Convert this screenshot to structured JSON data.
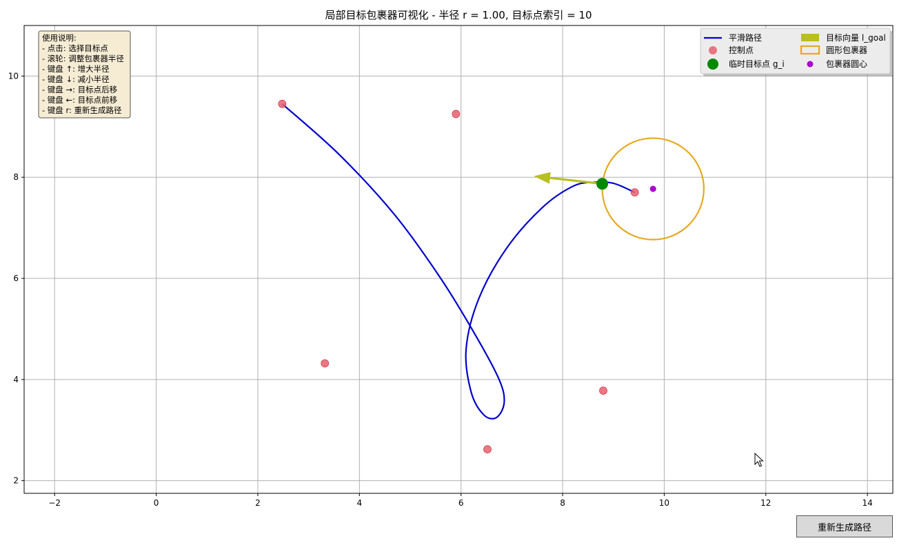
{
  "window": {
    "button_label": "重新生成路径"
  },
  "chart_data": {
    "type": "line",
    "title": "局部目标包裹器可视化 - 半径 r = 1.00, 目标点索引 = 10",
    "xlabel": "",
    "ylabel": "",
    "xlim": [
      -2.6,
      14.5
    ],
    "ylim": [
      1.75,
      11.0
    ],
    "xticks": [
      -2,
      0,
      2,
      4,
      6,
      8,
      10,
      12,
      14
    ],
    "xtick_labels": [
      "−2",
      "0",
      "2",
      "4",
      "6",
      "8",
      "10",
      "12",
      "14"
    ],
    "yticks": [
      2,
      4,
      6,
      8,
      10
    ],
    "ytick_labels": [
      "2",
      "4",
      "6",
      "8",
      "10"
    ],
    "grid": true,
    "legend_position": "top-right",
    "series": [
      {
        "name": "平滑路径",
        "type": "line",
        "color": "#0000cc",
        "points": [
          [
            2.48,
            9.45
          ],
          [
            3.6,
            8.45
          ],
          [
            4.7,
            7.25
          ],
          [
            5.6,
            6.0
          ],
          [
            6.3,
            4.85
          ],
          [
            6.75,
            4.0
          ],
          [
            6.85,
            3.55
          ],
          [
            6.7,
            3.25
          ],
          [
            6.45,
            3.3
          ],
          [
            6.2,
            3.75
          ],
          [
            6.1,
            4.6
          ],
          [
            6.35,
            5.6
          ],
          [
            6.9,
            6.6
          ],
          [
            7.6,
            7.4
          ],
          [
            8.2,
            7.82
          ],
          [
            8.6,
            7.9
          ],
          [
            9.0,
            7.88
          ],
          [
            9.42,
            7.7
          ]
        ]
      },
      {
        "name": "控制点",
        "type": "scatter",
        "color": "#e8606e",
        "points": [
          [
            2.48,
            9.45
          ],
          [
            5.9,
            9.25
          ],
          [
            3.32,
            4.32
          ],
          [
            6.52,
            2.62
          ],
          [
            8.8,
            3.78
          ],
          [
            9.42,
            7.7
          ]
        ]
      },
      {
        "name": "临时目标点 g_i",
        "type": "scatter",
        "color": "#008800",
        "points": [
          [
            8.78,
            7.87
          ]
        ]
      },
      {
        "name": "包裹器圆心",
        "type": "scatter",
        "color": "#aa00cc",
        "points": [
          [
            9.78,
            7.77
          ]
        ]
      },
      {
        "name": "圆形包裹器",
        "type": "circle",
        "color": "#e6a820",
        "center": [
          9.78,
          7.77
        ],
        "radius": 1.0
      },
      {
        "name": "目标向量 l_goal",
        "type": "arrow",
        "color": "#b8c020",
        "from": [
          8.78,
          7.87
        ],
        "to": [
          7.45,
          8.02
        ]
      }
    ],
    "legend": {
      "entries": [
        "平滑路径",
        "控制点",
        "临时目标点 g_i",
        "目标向量 l_goal",
        "圆形包裹器",
        "包裹器圆心"
      ]
    },
    "annotation": {
      "lines": [
        "使用说明:",
        "- 点击: 选择目标点",
        "- 滚轮: 调整包裹器半径",
        "- 键盘 ↑: 增大半径",
        "- 键盘 ↓: 减小半径",
        "- 键盘 →: 目标点后移",
        "- 键盘 ←: 目标点前移",
        "- 键盘 r: 重新生成路径"
      ]
    }
  }
}
